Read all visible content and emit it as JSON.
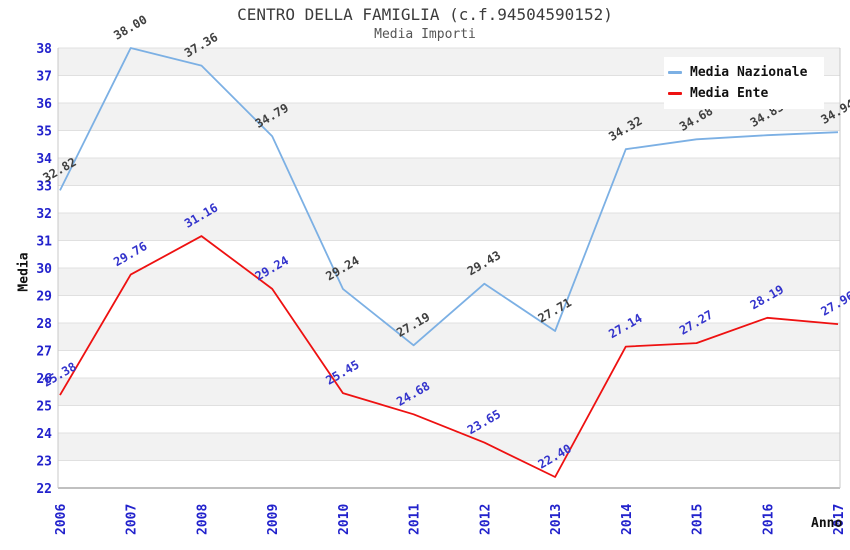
{
  "chart_data": {
    "type": "line",
    "title": "CENTRO DELLA FAMIGLIA (c.f.94504590152)",
    "subtitle": "Media Importi",
    "xlabel": "Anno",
    "ylabel": "Media",
    "x": [
      "2006",
      "2007",
      "2008",
      "2009",
      "2010",
      "2011",
      "2012",
      "2013",
      "2014",
      "2015",
      "2016",
      "2017"
    ],
    "ylim": [
      22,
      38
    ],
    "ytick_step": 1,
    "grid": true,
    "alternating_bands": true,
    "legend_position": "top-right",
    "label_format_decimals": 2,
    "label_rotation_deg": -30,
    "series": [
      {
        "name": "Media Nazionale",
        "color": "#7cb0e4",
        "label_color": "#404040",
        "values": [
          32.82,
          38.0,
          37.36,
          34.79,
          29.24,
          27.19,
          29.43,
          27.71,
          34.32,
          34.68,
          34.83,
          34.94
        ]
      },
      {
        "name": "Media Ente",
        "color": "#ee1111",
        "label_color": "#3333cc",
        "values": [
          25.38,
          29.76,
          31.16,
          29.24,
          25.45,
          24.68,
          23.65,
          22.4,
          27.14,
          27.27,
          28.19,
          27.96
        ]
      }
    ],
    "colors": {
      "axis_tick": "#2222cc",
      "band": "#f2f2f2",
      "grid": "#e0e0e0",
      "axis_line": "#808080",
      "plot_border": "#c8c8c8",
      "title": "#3c3c3c",
      "subtitle": "#555555",
      "legend_text": "#111111"
    }
  }
}
